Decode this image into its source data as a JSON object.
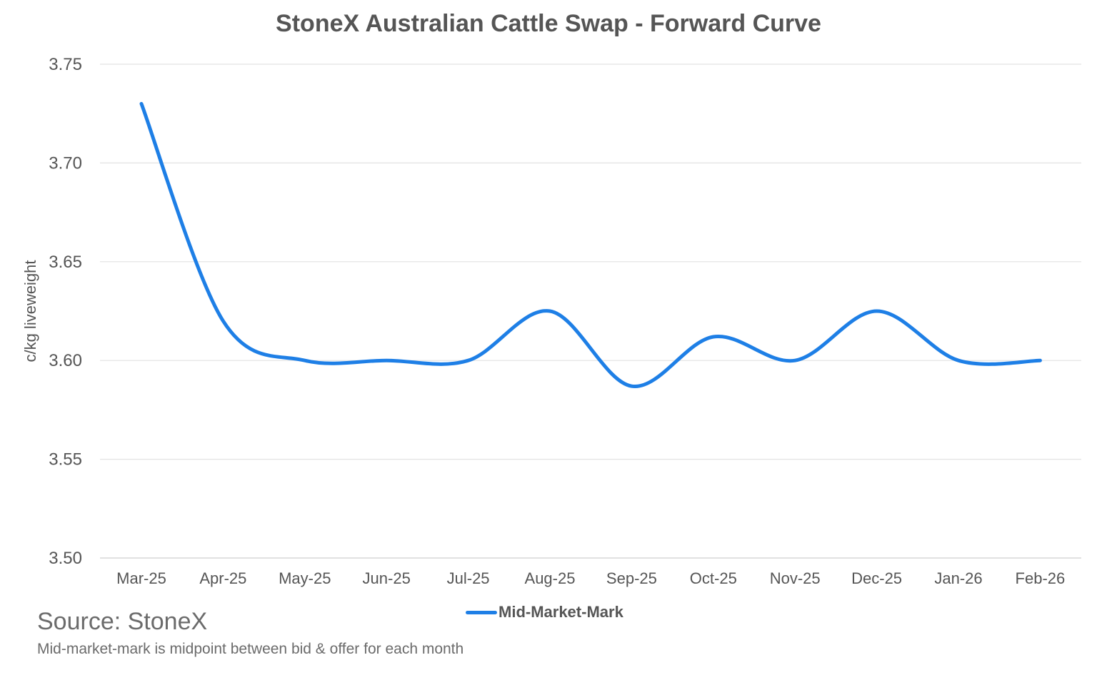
{
  "chart_data": {
    "type": "line",
    "title": "StoneX Australian Cattle Swap - Forward Curve",
    "xlabel": "",
    "ylabel": "c/kg liveweight",
    "categories": [
      "Mar-25",
      "Apr-25",
      "May-25",
      "Jun-25",
      "Jul-25",
      "Aug-25",
      "Sep-25",
      "Oct-25",
      "Nov-25",
      "Dec-25",
      "Jan-26",
      "Feb-26"
    ],
    "series": [
      {
        "name": "Mid-Market-Mark",
        "values": [
          3.73,
          3.62,
          3.6,
          3.6,
          3.6,
          3.625,
          3.587,
          3.612,
          3.6,
          3.625,
          3.6,
          3.6
        ],
        "color": "#1e7fe6"
      }
    ],
    "ylim": [
      3.5,
      3.75
    ],
    "yticks": [
      "3.50",
      "3.55",
      "3.60",
      "3.65",
      "3.70",
      "3.75"
    ],
    "grid": true,
    "legend_position": "bottom-center",
    "smooth": true
  },
  "footer": {
    "source": "Source: StoneX",
    "note": "Mid-market-mark is midpoint between bid & offer for each month"
  }
}
